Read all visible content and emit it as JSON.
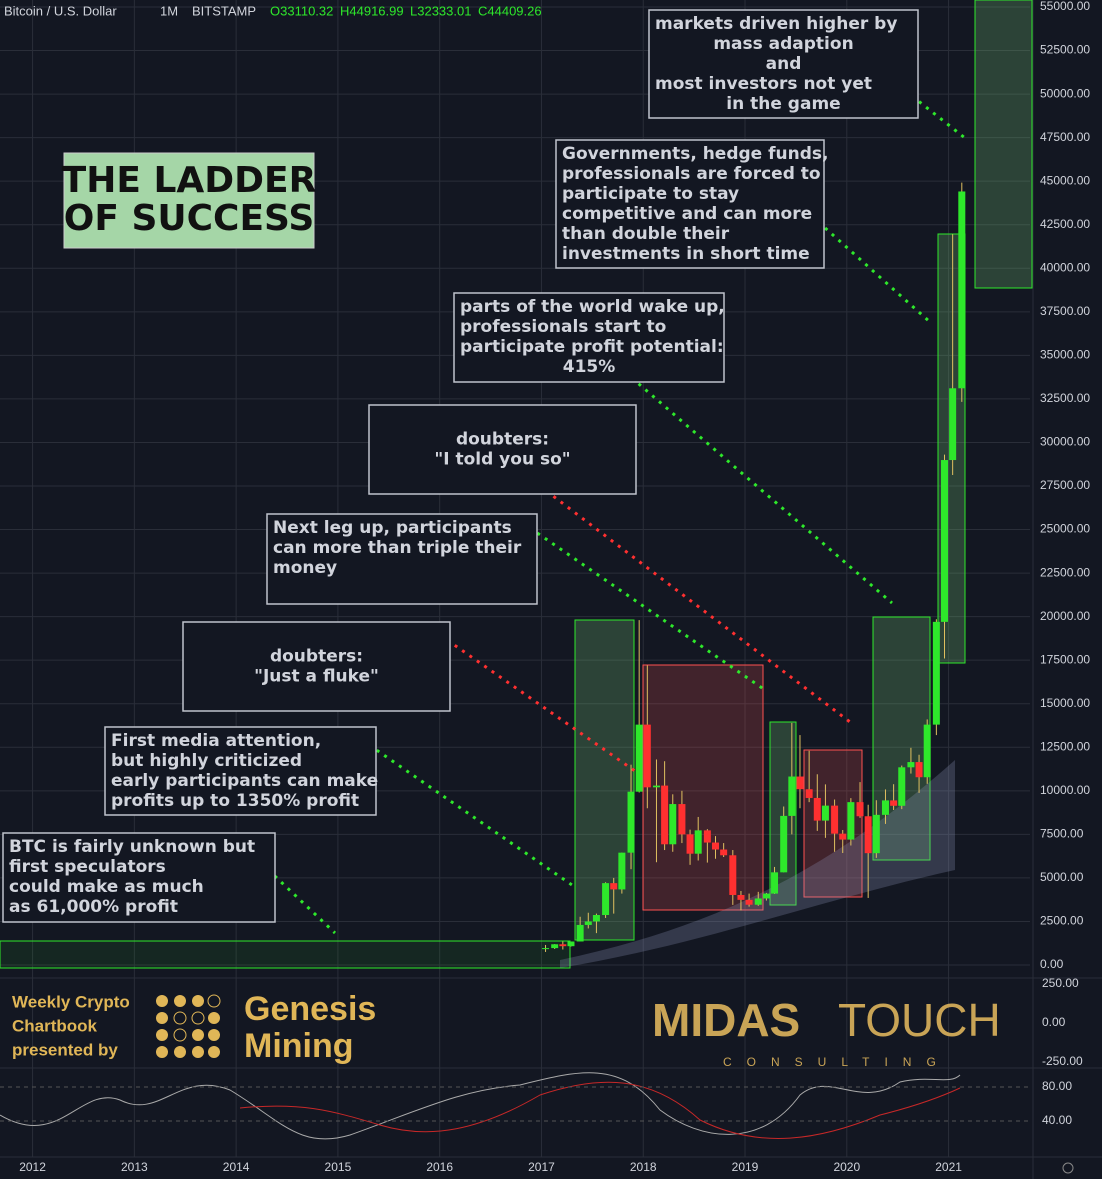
{
  "header": {
    "symbol": "Bitcoin / U.S. Dollar",
    "interval": "1M",
    "exchange": "BITSTAMP",
    "open": "O33110.32",
    "high": "H44916.99",
    "low": "L32333.01",
    "close": "C44409.26"
  },
  "chart_data": {
    "type": "candlestick",
    "up_color": "#2ee82b",
    "down_color": "#ff3030",
    "x": [
      2017.04,
      2017.13,
      2017.21,
      2017.29,
      2017.38,
      2017.46,
      2017.54,
      2017.63,
      2017.71,
      2017.79,
      2017.88,
      2017.96,
      2018.04,
      2018.13,
      2018.21,
      2018.29,
      2018.38,
      2018.46,
      2018.54,
      2018.63,
      2018.71,
      2018.79,
      2018.88,
      2018.96,
      2019.04,
      2019.13,
      2019.21,
      2019.29,
      2019.38,
      2019.46,
      2019.54,
      2019.63,
      2019.71,
      2019.79,
      2019.88,
      2019.96,
      2020.04,
      2020.13,
      2020.21,
      2020.29,
      2020.38,
      2020.46,
      2020.54,
      2020.63,
      2020.71,
      2020.79,
      2020.88,
      2020.96,
      2021.04,
      2021.13
    ],
    "open": [
      960,
      970,
      1190,
      1080,
      1350,
      2300,
      2500,
      2870,
      4700,
      4340,
      6450,
      9950,
      13800,
      10200,
      10300,
      6930,
      9240,
      7500,
      6390,
      7730,
      7030,
      6630,
      6300,
      4020,
      3740,
      3460,
      3820,
      4100,
      5320,
      8560,
      10820,
      10090,
      9590,
      8290,
      9150,
      7540,
      7200,
      9350,
      8540,
      6420,
      8620,
      9450,
      9140,
      11350,
      11650,
      10780,
      13800,
      19700,
      28990,
      33110.32
    ],
    "high": [
      1150,
      1200,
      1350,
      1350,
      2770,
      3000,
      2950,
      4750,
      5000,
      6450,
      11500,
      19800,
      17200,
      11800,
      11700,
      9800,
      10000,
      7770,
      8500,
      7800,
      7400,
      7000,
      6600,
      4250,
      4100,
      4200,
      4140,
      5630,
      9100,
      13900,
      13200,
      12300,
      10950,
      10370,
      9500,
      7750,
      9580,
      10500,
      9200,
      9460,
      10080,
      10380,
      11450,
      12470,
      12070,
      14100,
      19850,
      29300,
      41950,
      44916.99
    ],
    "low": [
      750,
      920,
      890,
      1060,
      1350,
      2100,
      1830,
      2700,
      2950,
      4100,
      5500,
      9900,
      9000,
      5900,
      6600,
      6500,
      7000,
      5750,
      6000,
      5880,
      6100,
      6200,
      3450,
      3130,
      3350,
      3400,
      3700,
      4080,
      5320,
      7500,
      9000,
      9350,
      7700,
      7300,
      6500,
      6430,
      6860,
      8450,
      3850,
      6150,
      8100,
      8900,
      8950,
      10990,
      9880,
      10400,
      13200,
      17600,
      28130,
      32333.01
    ],
    "close": [
      970,
      1190,
      1080,
      1350,
      2300,
      2500,
      2870,
      4700,
      4340,
      6450,
      9950,
      13800,
      10200,
      10300,
      6930,
      9240,
      7500,
      6390,
      7730,
      7030,
      6630,
      6300,
      4020,
      3740,
      3460,
      3820,
      4100,
      5320,
      8560,
      10820,
      10090,
      9590,
      8290,
      9150,
      7540,
      7200,
      9350,
      8540,
      6420,
      8620,
      9450,
      9140,
      11350,
      11650,
      10780,
      13800,
      19700,
      28990,
      33110.32,
      44409.26
    ],
    "xlim": [
      2011.68,
      2021.8
    ],
    "xticks": [
      2012,
      2013,
      2014,
      2015,
      2016,
      2017,
      2018,
      2019,
      2020,
      2021
    ],
    "ylim": [
      0,
      55000
    ],
    "yticks": [
      {
        "value": 0,
        "label": "0.00"
      },
      {
        "value": 2500,
        "label": "2500.00"
      },
      {
        "value": 5000,
        "label": "5000.00"
      },
      {
        "value": 7500,
        "label": "7500.00"
      },
      {
        "value": 10000,
        "label": "10000.00"
      },
      {
        "value": 12500,
        "label": "12500.00"
      },
      {
        "value": 15000,
        "label": "15000.00"
      },
      {
        "value": 17500,
        "label": "17500.00"
      },
      {
        "value": 20000,
        "label": "20000.00"
      },
      {
        "value": 22500,
        "label": "22500.00"
      },
      {
        "value": 25000,
        "label": "25000.00"
      },
      {
        "value": 27500,
        "label": "27500.00"
      },
      {
        "value": 30000,
        "label": "30000.00"
      },
      {
        "value": 32500,
        "label": "32500.00"
      },
      {
        "value": 35000,
        "label": "35000.00"
      },
      {
        "value": 37500,
        "label": "37500.00"
      },
      {
        "value": 40000,
        "label": "40000.00"
      },
      {
        "value": 42500,
        "label": "42500.00"
      },
      {
        "value": 45000,
        "label": "45000.00"
      },
      {
        "value": 47500,
        "label": "47500.00"
      },
      {
        "value": 50000,
        "label": "50000.00"
      },
      {
        "value": 52500,
        "label": "52500.00"
      },
      {
        "value": 55000,
        "label": "55000.00"
      }
    ],
    "grid": true
  },
  "osc_pane": {
    "ylim": [
      -300,
      300
    ],
    "yticks": [
      {
        "value": 250,
        "label": "250.00"
      },
      {
        "value": 0,
        "label": "0.00"
      },
      {
        "value": -250,
        "label": "-250.00"
      }
    ]
  },
  "rsi_pane": {
    "ylim": [
      0,
      100
    ],
    "yticks": [
      {
        "value": 80,
        "label": "80.00"
      },
      {
        "value": 40,
        "label": "40.00"
      }
    ]
  },
  "title_box": [
    "THE LADDER",
    "OF SUCCESS"
  ],
  "annotations": [
    {
      "lines": [
        "BTC is fairly unknown but",
        "first speculators",
        "could make as much",
        "as 61,000% profit"
      ]
    },
    {
      "lines": [
        "First media attention,",
        "but highly criticized",
        "early participants can make",
        "profits up to 1350% profit"
      ]
    },
    {
      "lines": [
        "doubters:",
        "\"Just a fluke\""
      ]
    },
    {
      "lines": [
        "Next leg up, participants",
        "can more than triple their",
        "money"
      ]
    },
    {
      "lines": [
        "doubters:",
        "\"I told you so\""
      ]
    },
    {
      "lines": [
        "parts of the world wake up,",
        "professionals start to",
        "participate profit potential:",
        "415%"
      ]
    },
    {
      "lines": [
        "Governments, hedge funds,",
        "professionals are forced to",
        "participate to stay",
        "competitive and can more",
        "than double their",
        "investments in short time"
      ]
    },
    {
      "lines": [
        "markets driven higher by",
        "mass adaption",
        "and",
        "most investors not yet",
        "in the game"
      ]
    }
  ],
  "logos": {
    "genesis_caption": [
      "Weekly Crypto",
      "Chartbook",
      "presented by"
    ],
    "genesis_name": [
      "Genesis",
      "Mining"
    ],
    "midas": [
      "MIDAS",
      "TOUCH"
    ],
    "midas_sub": "CONSULTING"
  }
}
